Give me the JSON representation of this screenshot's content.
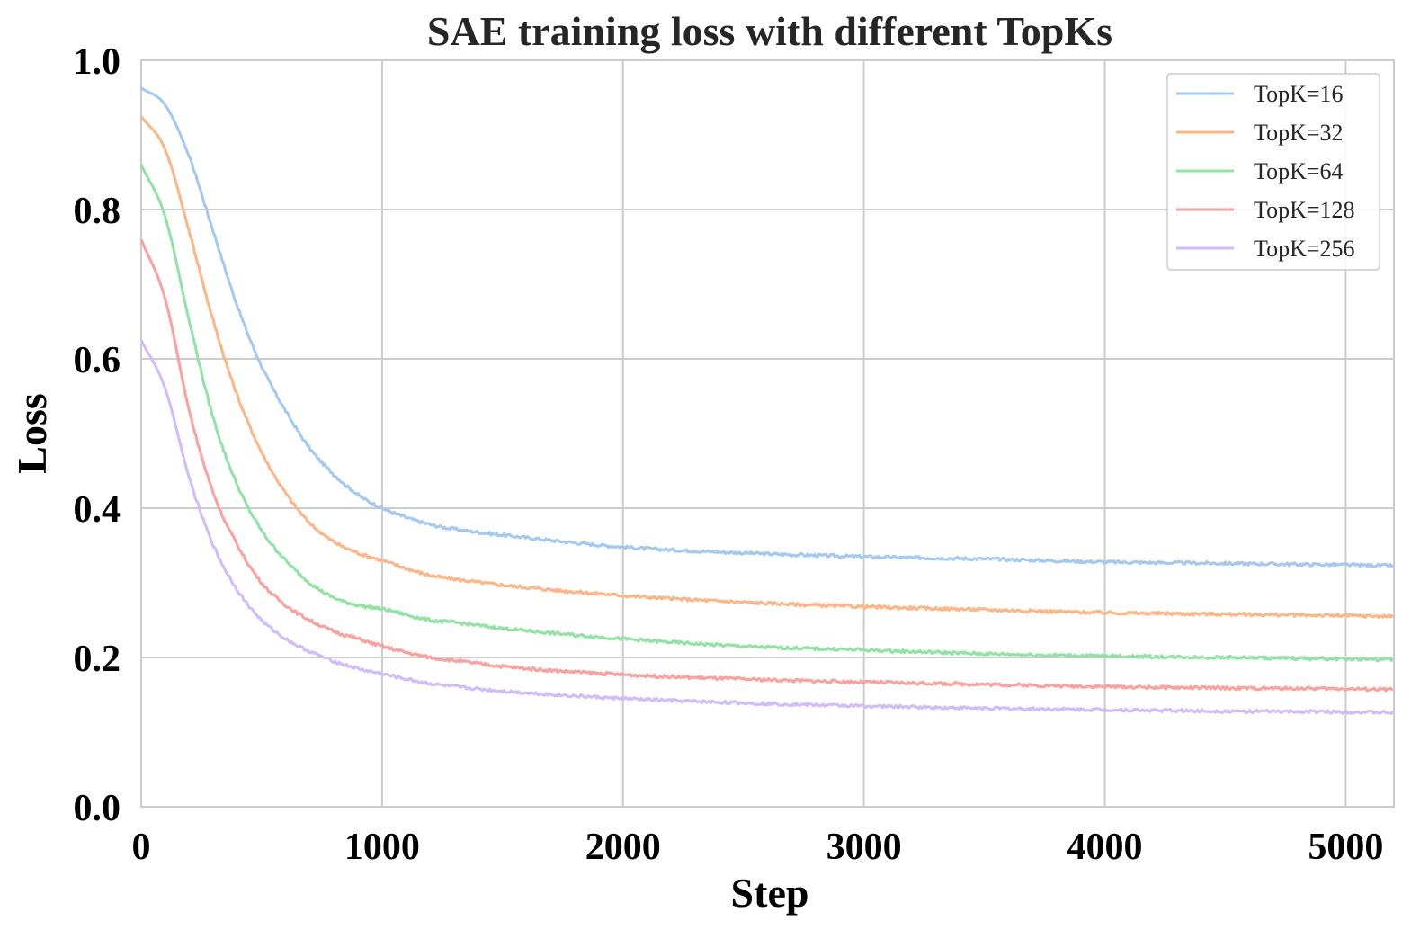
{
  "chart_data": {
    "type": "line",
    "title": "SAE training loss with different TopKs",
    "xlabel": "Step",
    "ylabel": "Loss",
    "xlim": [
      0,
      5200
    ],
    "ylim": [
      0.0,
      1.0
    ],
    "xticks": [
      0,
      1000,
      2000,
      3000,
      4000,
      5000
    ],
    "xtick_labels": [
      "0",
      "1000",
      "2000",
      "3000",
      "4000",
      "5000"
    ],
    "yticks": [
      0.0,
      0.2,
      0.4,
      0.6,
      0.8,
      1.0
    ],
    "ytick_labels": [
      "0.0",
      "0.2",
      "0.4",
      "0.6",
      "0.8",
      "1.0"
    ],
    "grid": true,
    "legend_position": "top-right",
    "x": [
      0,
      100,
      200,
      300,
      400,
      500,
      600,
      700,
      800,
      900,
      1000,
      1200,
      1300,
      1500,
      2000,
      2500,
      3000,
      3500,
      4000,
      4500,
      5000,
      5200
    ],
    "series": [
      {
        "name": "TopK=16",
        "color": "#a1c9f4",
        "values": [
          0.963,
          0.94,
          0.87,
          0.77,
          0.67,
          0.59,
          0.53,
          0.48,
          0.445,
          0.418,
          0.4,
          0.378,
          0.372,
          0.364,
          0.348,
          0.34,
          0.335,
          0.332,
          0.328,
          0.326,
          0.324,
          0.323
        ]
      },
      {
        "name": "TopK=32",
        "color": "#ffb482",
        "values": [
          0.925,
          0.88,
          0.77,
          0.65,
          0.55,
          0.475,
          0.42,
          0.38,
          0.355,
          0.34,
          0.33,
          0.31,
          0.305,
          0.297,
          0.283,
          0.274,
          0.268,
          0.264,
          0.26,
          0.258,
          0.256,
          0.255
        ]
      },
      {
        "name": "TopK=64",
        "color": "#8de5a1",
        "values": [
          0.86,
          0.79,
          0.65,
          0.52,
          0.43,
          0.37,
          0.33,
          0.3,
          0.28,
          0.27,
          0.265,
          0.25,
          0.247,
          0.239,
          0.225,
          0.215,
          0.21,
          0.205,
          0.202,
          0.2,
          0.198,
          0.197
        ]
      },
      {
        "name": "TopK=128",
        "color": "#ff9f9b",
        "values": [
          0.76,
          0.68,
          0.53,
          0.42,
          0.35,
          0.3,
          0.27,
          0.25,
          0.235,
          0.225,
          0.215,
          0.2,
          0.196,
          0.188,
          0.177,
          0.171,
          0.167,
          0.164,
          0.161,
          0.159,
          0.158,
          0.157
        ]
      },
      {
        "name": "TopK=256",
        "color": "#d0bbff",
        "values": [
          0.625,
          0.56,
          0.44,
          0.35,
          0.29,
          0.25,
          0.225,
          0.208,
          0.195,
          0.185,
          0.178,
          0.165,
          0.161,
          0.155,
          0.145,
          0.139,
          0.135,
          0.132,
          0.13,
          0.128,
          0.127,
          0.126
        ]
      }
    ]
  }
}
